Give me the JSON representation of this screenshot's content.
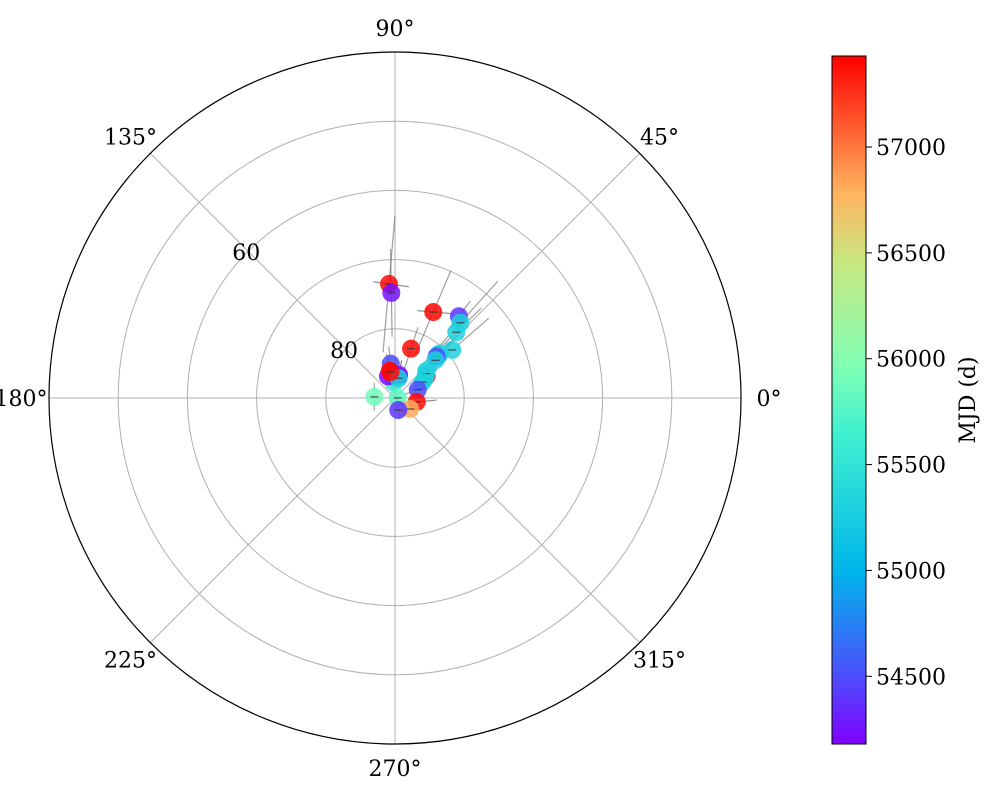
{
  "chart_data": {
    "type": "scatter",
    "projection": "polar",
    "grid": true,
    "angular_ticks": [
      "0°",
      "45°",
      "90°",
      "135°",
      "180°",
      "225°",
      "270°",
      "315°"
    ],
    "angular_tick_values": [
      0,
      45,
      90,
      135,
      180,
      225,
      270,
      315
    ],
    "radial_axis": {
      "center_value": 90,
      "outer_value": 40,
      "ticks": [
        60,
        80
      ],
      "gridlines": [
        50,
        60,
        70,
        80
      ]
    },
    "colorbar": {
      "label": "MJD (d)",
      "range": [
        54180,
        57430
      ],
      "ticks": [
        54500,
        55000,
        55500,
        56000,
        56500,
        57000
      ],
      "tick_labels": [
        "54500",
        "55000",
        "55500",
        "56000",
        "56500",
        "57000"
      ],
      "colormap": "rainbow"
    },
    "points": [
      {
        "theta": 93,
        "r": 73.5,
        "mjd": 57400,
        "err": [
          [
            85,
            81.5,
            61.7
          ],
          [
            352,
            0,
            0
          ]
        ]
      },
      {
        "theta": 92,
        "r": 74.8,
        "mjd": 54250,
        "err": [
          [
            91,
            76.5,
            63.8
          ]
        ]
      },
      {
        "theta": 52,
        "r": 75.0,
        "mjd": 54400,
        "err": [
          [
            53,
            72.5,
            78
          ]
        ]
      },
      {
        "theta": 66,
        "r": 76.4,
        "mjd": 57400,
        "err": [
          [
            67,
            70,
            83
          ],
          [
            355,
            0,
            0
          ]
        ]
      },
      {
        "theta": 49,
        "r": 75.6,
        "mjd": 55300,
        "err": [
          [
            48,
            67.5,
            83.7
          ]
        ]
      },
      {
        "theta": 47,
        "r": 77.0,
        "mjd": 55300,
        "err": [
          [
            44,
            72,
            82
          ]
        ]
      },
      {
        "theta": 40,
        "r": 79.2,
        "mjd": 55300,
        "err": [
          [
            41,
            71,
            85
          ]
        ]
      },
      {
        "theta": 72,
        "r": 82.5,
        "mjd": 57400,
        "err": [
          [
            72,
            79,
            85.5
          ]
        ]
      },
      {
        "theta": 45,
        "r": 81.2,
        "mjd": 55300,
        "err": [
          [
            45,
            77,
            84
          ]
        ]
      },
      {
        "theta": 45,
        "r": 80.9,
        "mjd": 55300,
        "err": [
          [
            45,
            76,
            84
          ]
        ]
      },
      {
        "theta": 44,
        "r": 81.3,
        "mjd": 55300,
        "err": [
          [
            44,
            78,
            84
          ]
        ]
      },
      {
        "theta": 45,
        "r": 81.5,
        "mjd": 54500,
        "err": [
          [
            45,
            78,
            84
          ]
        ]
      },
      {
        "theta": 43,
        "r": 82.0,
        "mjd": 55300,
        "err": [
          [
            43,
            79,
            85
          ]
        ]
      },
      {
        "theta": 35,
        "r": 84.4,
        "mjd": 57400,
        "err": [
          [
            35,
            82,
            86
          ]
        ]
      },
      {
        "theta": 41,
        "r": 84.0,
        "mjd": 55300,
        "err": [
          [
            41,
            81,
            86
          ]
        ]
      },
      {
        "theta": 34,
        "r": 84.7,
        "mjd": 55300,
        "err": [
          [
            34,
            82,
            86
          ]
        ]
      },
      {
        "theta": 38,
        "r": 84.3,
        "mjd": 55300,
        "err": [
          [
            38,
            82,
            86
          ]
        ]
      },
      {
        "theta": 30,
        "r": 85.4,
        "mjd": 55300,
        "err": [
          [
            30,
            83,
            87
          ]
        ]
      },
      {
        "theta": 20,
        "r": 86.5,
        "mjd": 54500,
        "err": [
          [
            20,
            84,
            88
          ]
        ]
      },
      {
        "theta": 80,
        "r": 86.9,
        "mjd": 54400,
        "err": [
          [
            80,
            84,
            89
          ]
        ]
      },
      {
        "theta": 94,
        "r": 87.8,
        "mjd": 55600,
        "err": [
          [
            94,
            84,
            89
          ]
        ]
      },
      {
        "theta": 97,
        "r": 85.0,
        "mjd": 54500,
        "err": [
          [
            97,
            82,
            87
          ]
        ]
      },
      {
        "theta": 108,
        "r": 86.7,
        "mjd": 54200,
        "err": [
          [
            108,
            83,
            88
          ]
        ]
      },
      {
        "theta": 101,
        "r": 86.0,
        "mjd": 57400,
        "err": [
          [
            101,
            83,
            88
          ]
        ]
      },
      {
        "theta": 80,
        "r": 86.6,
        "mjd": 54200,
        "err": [
          [
            80,
            84,
            88
          ]
        ]
      },
      {
        "theta": 80,
        "r": 87.1,
        "mjd": 55300,
        "err": [
          [
            80,
            85,
            89
          ]
        ]
      },
      {
        "theta": 100,
        "r": 86.2,
        "mjd": 57400,
        "err": [
          [
            100,
            84,
            88
          ]
        ]
      },
      {
        "theta": 350,
        "r": 86.8,
        "mjd": 57400,
        "err": [
          [
            347,
            86.5,
            87.2
          ],
          [
            5,
            0,
            0
          ]
        ]
      },
      {
        "theta": 177,
        "r": 87.0,
        "mjd": 55900,
        "err": [
          [
            90,
            85,
            89
          ]
        ]
      },
      {
        "theta": 1,
        "r": 89.6,
        "mjd": 55800,
        "err": [
          [
            90,
            89,
            90.5
          ]
        ]
      },
      {
        "theta": 324,
        "r": 87.3,
        "mjd": 56800,
        "err": [
          [
            325,
            86,
            88.5
          ]
        ]
      },
      {
        "theta": 285,
        "r": 88.2,
        "mjd": 54400,
        "err": [
          [
            285,
            87,
            89
          ]
        ]
      }
    ]
  }
}
